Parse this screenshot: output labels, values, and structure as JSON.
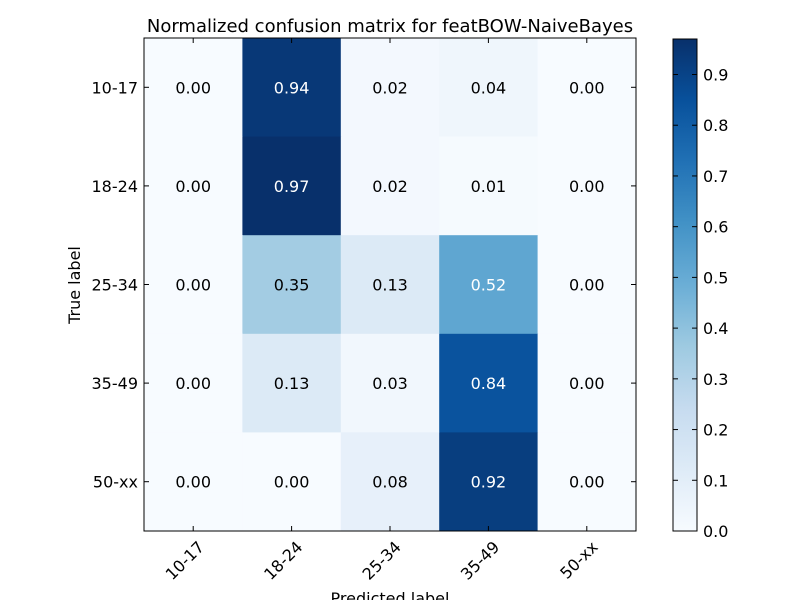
{
  "chart_data": {
    "type": "heatmap",
    "title": "Normalized confusion matrix for featBOW-NaiveBayes",
    "xlabel": "Predicted label",
    "ylabel": "True label",
    "x_categories": [
      "10-17",
      "18-24",
      "25-34",
      "35-49",
      "50-xx"
    ],
    "y_categories": [
      "10-17",
      "18-24",
      "25-34",
      "35-49",
      "50-xx"
    ],
    "values": [
      [
        0.0,
        0.94,
        0.02,
        0.04,
        0.0
      ],
      [
        0.0,
        0.97,
        0.02,
        0.01,
        0.0
      ],
      [
        0.0,
        0.35,
        0.13,
        0.52,
        0.0
      ],
      [
        0.0,
        0.13,
        0.03,
        0.84,
        0.0
      ],
      [
        0.0,
        0.0,
        0.08,
        0.92,
        0.0
      ]
    ],
    "colormap": "Blues",
    "vmin": 0.0,
    "vmax": 0.97,
    "colorbar_ticks": [
      "0.0",
      "0.1",
      "0.2",
      "0.3",
      "0.4",
      "0.5",
      "0.6",
      "0.7",
      "0.8",
      "0.9"
    ],
    "colorbar_tick_values": [
      0.0,
      0.1,
      0.2,
      0.3,
      0.4,
      0.5,
      0.6,
      0.7,
      0.8,
      0.9
    ],
    "text_threshold": 0.485,
    "text_colors": {
      "dark": "#000000",
      "light": "#ffffff"
    }
  }
}
